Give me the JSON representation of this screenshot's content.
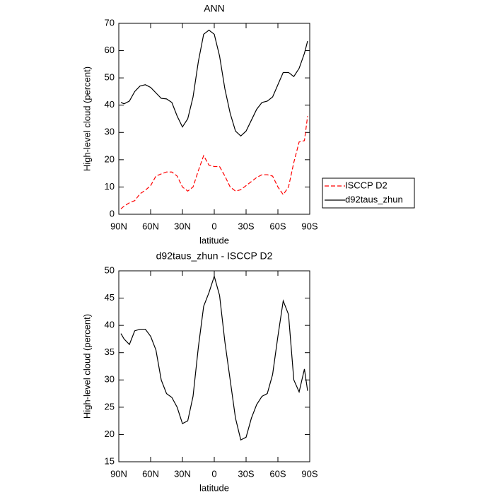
{
  "chart_data": [
    {
      "type": "line",
      "title": "ANN",
      "xlabel": "latitude",
      "ylabel": "High-level cloud (percent)",
      "x": [
        88,
        85,
        80,
        75,
        70,
        65,
        60,
        55,
        50,
        45,
        40,
        35,
        30,
        25,
        20,
        15,
        10,
        5,
        0,
        -5,
        -10,
        -15,
        -20,
        -25,
        -30,
        -35,
        -40,
        -45,
        -50,
        -55,
        -60,
        -65,
        -70,
        -75,
        -80,
        -85,
        -88
      ],
      "series": [
        {
          "name": "ISCCP D2",
          "color": "#ff0000",
          "dash": true,
          "values": [
            2,
            3,
            4.2,
            5,
            7.5,
            8.8,
            10.5,
            14,
            14.8,
            15.5,
            15.5,
            14,
            10,
            8.5,
            10,
            16,
            21.5,
            18,
            17.5,
            17.5,
            14,
            10,
            8.5,
            9,
            10.5,
            12,
            13.5,
            14.5,
            14.5,
            14,
            10,
            7.2,
            10,
            19,
            26.5,
            27,
            36
          ]
        },
        {
          "name": "d92taus_zhun",
          "color": "#000000",
          "dash": false,
          "values": [
            41,
            40.5,
            41.5,
            45,
            47,
            47.5,
            46.5,
            44.5,
            42.5,
            42.3,
            41,
            36,
            32,
            35,
            43,
            56,
            66,
            67.5,
            66,
            58,
            46,
            37,
            30.5,
            28.7,
            30.5,
            34.5,
            38.5,
            41,
            41.5,
            43,
            47.5,
            52,
            52,
            50.5,
            53.5,
            59,
            63.5
          ]
        }
      ],
      "xlim": [
        90,
        -90
      ],
      "xticks": [
        {
          "value": 90,
          "label": "90N"
        },
        {
          "value": 60,
          "label": "60N"
        },
        {
          "value": 30,
          "label": "30N"
        },
        0,
        {
          "value": -30,
          "label": "30S"
        },
        {
          "value": -60,
          "label": "60S"
        },
        {
          "value": -90,
          "label": "90S"
        }
      ],
      "ylim": [
        0,
        70
      ],
      "yticks": [
        0,
        10,
        20,
        30,
        40,
        50,
        60,
        70
      ],
      "legend": "right"
    },
    {
      "type": "line",
      "title": "d92taus_zhun - ISCCP D2",
      "xlabel": "latitude",
      "ylabel": "High-level cloud (percent)",
      "x": [
        88,
        85,
        80,
        75,
        70,
        65,
        60,
        55,
        50,
        45,
        40,
        35,
        30,
        25,
        20,
        15,
        10,
        5,
        0,
        -5,
        -10,
        -15,
        -20,
        -25,
        -30,
        -35,
        -40,
        -45,
        -50,
        -55,
        -60,
        -65,
        -70,
        -75,
        -80,
        -85,
        -88
      ],
      "values": [
        38.5,
        37.5,
        36.5,
        39,
        39.3,
        39.3,
        38,
        35.5,
        30,
        27.5,
        26.8,
        25,
        22,
        22.5,
        27,
        36,
        43.5,
        46,
        49,
        45.5,
        37,
        30,
        23,
        19,
        19.5,
        23,
        25.5,
        27,
        27.5,
        31,
        38,
        44.5,
        42,
        30,
        27.8,
        32,
        28
      ],
      "color": "#000000",
      "xlim": [
        90,
        -90
      ],
      "xticks": [
        {
          "value": 90,
          "label": "90N"
        },
        {
          "value": 60,
          "label": "60N"
        },
        {
          "value": 30,
          "label": "30N"
        },
        0,
        {
          "value": -30,
          "label": "30S"
        },
        {
          "value": -60,
          "label": "60S"
        },
        {
          "value": -90,
          "label": "90S"
        }
      ],
      "ylim": [
        15,
        50
      ],
      "yticks": [
        15,
        20,
        25,
        30,
        35,
        40,
        45,
        50
      ]
    }
  ]
}
